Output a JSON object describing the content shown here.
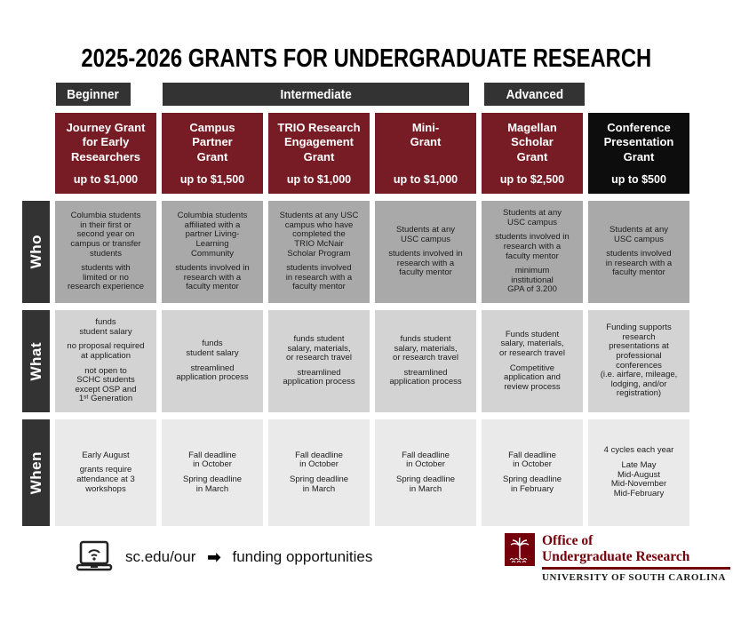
{
  "title": "2025-2026 GRANTS FOR UNDERGRADUATE RESEARCH",
  "colors": {
    "garnet": "#771c25",
    "black_header": "#0d0d0d",
    "bar_color": "#333333",
    "who_bg": "#a9a9a9",
    "what_bg": "#d3d3d3",
    "when_bg": "#eaeaea",
    "logo_garnet": "#73000a"
  },
  "category_bars": {
    "beginner": "Beginner",
    "intermediate": "Intermediate",
    "advanced": "Advanced"
  },
  "row_labels": {
    "who": "Who",
    "what": "What",
    "when": "When"
  },
  "grants": [
    {
      "name": "Journey Grant\nfor Early\nResearchers",
      "amount": "up to $1,000",
      "who": "Columbia students\nin their first or\nsecond year on\ncampus or transfer\nstudents\n\nstudents with\nlimited or no\nresearch experience",
      "what": "funds\nstudent salary\n\nno proposal required\nat application\n\nnot open to\nSCHC students\nexcept OSP and\n1ˢᵗ Generation",
      "when": "Early August\n\ngrants require\nattendance at 3\nworkshops"
    },
    {
      "name": "Campus\nPartner\nGrant",
      "amount": "up to $1,500",
      "who": "Columbia students\naffiliated with a\npartner Living-\nLearning\nCommunity\n\nstudents involved in\nresearch with a\nfaculty mentor",
      "what": "funds\nstudent salary\n\nstreamlined\napplication process",
      "when": "Fall deadline\nin October\n\nSpring deadline\nin March"
    },
    {
      "name": "TRIO Research\nEngagement\nGrant",
      "amount": "up to $1,000",
      "who": "Students at any USC\ncampus who have\ncompleted the\nTRIO McNair\nScholar Program\n\nstudents involved\nin research with a\nfaculty mentor",
      "what": "funds student\nsalary, materials,\nor research travel\n\nstreamlined\napplication process",
      "when": "Fall deadline\nin October\n\nSpring deadline\nin March"
    },
    {
      "name": "Mini-\nGrant",
      "amount": "up to $1,000",
      "who": "Students at any\nUSC campus\n\nstudents involved in\nresearch with a\nfaculty mentor",
      "what": "funds student\nsalary, materials,\nor research travel\n\nstreamlined\napplication process",
      "when": "Fall deadline\nin October\n\nSpring deadline\nin March"
    },
    {
      "name": "Magellan\nScholar\nGrant",
      "amount": "up to $2,500",
      "who": "Students at any\nUSC campus\n\nstudents involved in\nresearch with a\nfaculty mentor\n\nminimum\ninstitutional\nGPA of 3.200",
      "what": "Funds student\nsalary, materials,\nor research travel\n\nCompetitive\napplication and\nreview process",
      "when": "Fall deadline\nin October\n\nSpring deadline\nin February"
    },
    {
      "name": "Conference\nPresentation\nGrant",
      "amount": "up to $500",
      "who": "Students at any\nUSC campus\n\nstudents involved\nin research with a\nfaculty mentor",
      "what": "Funding supports\nresearch\npresentations at\nprofessional\nconferences\n(i.e. airfare, mileage,\nlodging, and/or\nregistration)",
      "when": "4 cycles each year\n\nLate May\nMid-August\nMid-November\nMid-February"
    }
  ],
  "footer": {
    "url": "sc.edu/our",
    "arrow": "➡",
    "link_text": "funding opportunities",
    "logo": {
      "line1": "Office of",
      "line2": "Undergraduate Research",
      "line3": "UNIVERSITY OF SOUTH CAROLINA"
    }
  }
}
